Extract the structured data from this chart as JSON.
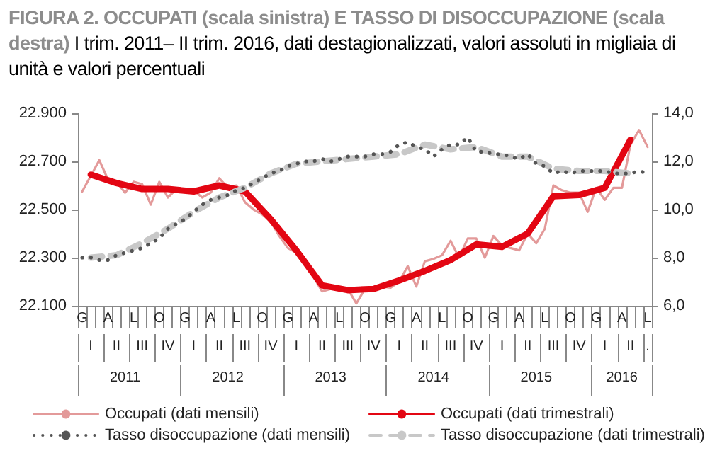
{
  "chart_data": {
    "type": "line",
    "title": "FIGURA 2. OCCUPATI (scala  sinistra) E TASSO DI DISOCCUPAZIONE (scala destra)",
    "subtitle": "I trim. 2011– II trim. 2016, dati destagionalizzati, valori assoluti in migliaia di unità e valori percentuali",
    "categories": [
      "G",
      null,
      null,
      "A",
      null,
      null,
      "L",
      null,
      null,
      "O",
      null,
      null,
      "G",
      null,
      null,
      "A",
      null,
      null,
      "L",
      null,
      null,
      "O",
      null,
      null,
      "G",
      null,
      null,
      "A",
      null,
      null,
      "L",
      null,
      null,
      "O",
      null,
      null,
      "G",
      null,
      null,
      "A",
      null,
      null,
      "L",
      null,
      null,
      "O",
      null,
      null,
      "G",
      null,
      null,
      "A",
      null,
      null,
      "L",
      null,
      null,
      "O",
      null,
      null,
      "G",
      null,
      null,
      "A",
      null,
      null,
      "L"
    ],
    "annotations": [
      "I",
      "II",
      "III",
      "IV",
      "I",
      "II",
      "III",
      "IV",
      "I",
      "II",
      "III",
      "IV",
      "I",
      "II",
      "III",
      "IV",
      "I",
      "II",
      "III",
      "IV",
      "I",
      "II",
      ".",
      "2011",
      "2012",
      "2013",
      "2014",
      "2015",
      "2016"
    ],
    "ylim": [
      22100,
      22900
    ],
    "yticks": [
      {
        "value": 22100,
        "label": "22.100"
      },
      {
        "value": 22300,
        "label": "22.300"
      },
      {
        "value": 22500,
        "label": "22.500"
      },
      {
        "value": 22700,
        "label": "22.700"
      },
      {
        "value": 22900,
        "label": "22.900"
      }
    ],
    "y2lim": [
      6,
      14
    ],
    "y2ticks": [
      {
        "value": 6,
        "label": "6,0"
      },
      {
        "value": 8,
        "label": "8,0"
      },
      {
        "value": 10,
        "label": "10,0"
      },
      {
        "value": 12,
        "label": "12,0"
      },
      {
        "value": 14,
        "label": "14,0"
      }
    ],
    "legend": "bottom",
    "marker": "none",
    "series": [
      {
        "name": "Occupati (dati mensili)",
        "color": "#e39a9a",
        "line_style": "solid",
        "values": [
          22575,
          22640,
          22705,
          22625,
          22615,
          22570,
          22615,
          22605,
          22520,
          22615,
          22550,
          22585,
          22585,
          22580,
          22550,
          22570,
          22630,
          22590,
          22600,
          22530,
          22500,
          22480,
          22450,
          22390,
          22340,
          22320,
          22270,
          22220,
          22160,
          22170,
          22175,
          22170,
          22110,
          22170,
          22170,
          22180,
          22175,
          22200,
          22265,
          22180,
          22285,
          22295,
          22310,
          22370,
          22300,
          22380,
          22380,
          22300,
          22390,
          22350,
          22340,
          22330,
          22400,
          22360,
          22420,
          22600,
          22580,
          22570,
          22570,
          22490,
          22590,
          22540,
          22590,
          22590,
          22770,
          22830,
          22760
        ]
      },
      {
        "name": "Occupati (dati trimestrali)",
        "color": "#e30613",
        "line_style": "solid",
        "values": [
          null,
          22645,
          null,
          null,
          22610,
          null,
          null,
          22585,
          null,
          null,
          22585,
          null,
          null,
          22575,
          null,
          null,
          22600,
          null,
          null,
          22575,
          null,
          null,
          22460,
          null,
          null,
          22330,
          null,
          null,
          22185,
          null,
          null,
          22165,
          null,
          null,
          22170,
          null,
          null,
          22205,
          null,
          null,
          22245,
          null,
          null,
          22290,
          null,
          null,
          22355,
          null,
          null,
          22345,
          null,
          null,
          22400,
          null,
          null,
          22555,
          null,
          null,
          22560,
          null,
          null,
          22590,
          null,
          null,
          22790,
          null,
          null
        ]
      },
      {
        "name": "Tasso disoccupazione (dati mensili)",
        "color": "#555555",
        "line_style": "dotted",
        "axis": "y2",
        "values": [
          8.0,
          8.0,
          7.9,
          7.9,
          8.1,
          8.2,
          8.3,
          8.4,
          8.6,
          8.8,
          9.2,
          9.4,
          9.6,
          9.9,
          10.2,
          10.4,
          10.5,
          10.6,
          10.8,
          10.9,
          11.1,
          11.3,
          11.5,
          11.6,
          11.8,
          11.9,
          12.0,
          12.0,
          12.1,
          12.0,
          12.1,
          12.2,
          12.2,
          12.2,
          12.3,
          12.3,
          12.4,
          12.7,
          12.8,
          12.6,
          12.5,
          12.2,
          12.5,
          12.7,
          12.7,
          13.0,
          12.4,
          12.4,
          12.3,
          12.3,
          12.2,
          12.1,
          12.3,
          11.9,
          11.8,
          11.5,
          11.6,
          11.5,
          11.6,
          11.6,
          11.6,
          11.6,
          11.5,
          11.5,
          11.5,
          11.6,
          11.5
        ]
      },
      {
        "name": "Tasso disoccupazione (dati trimestrali)",
        "color": "#c8c8c8",
        "line_style": "dashed",
        "axis": "y2",
        "values": [
          null,
          8.0,
          null,
          null,
          8.1,
          null,
          null,
          8.6,
          null,
          null,
          9.2,
          null,
          null,
          9.9,
          null,
          null,
          10.5,
          null,
          null,
          10.9,
          null,
          null,
          11.5,
          null,
          null,
          11.9,
          null,
          null,
          12.0,
          null,
          null,
          12.1,
          null,
          null,
          12.2,
          null,
          null,
          12.3,
          null,
          null,
          12.7,
          null,
          null,
          12.5,
          null,
          null,
          12.6,
          null,
          null,
          12.2,
          null,
          null,
          12.2,
          null,
          null,
          11.7,
          null,
          null,
          11.6,
          null,
          null,
          11.6,
          null,
          null,
          11.5,
          null,
          null
        ]
      }
    ]
  }
}
